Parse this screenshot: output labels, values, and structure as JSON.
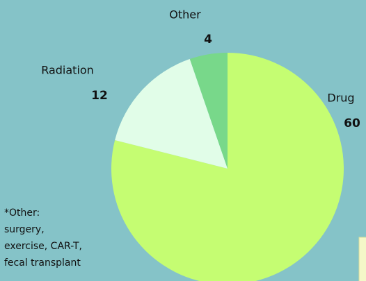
{
  "chart_data": {
    "type": "pie",
    "categories": [
      "Drug",
      "Radiation",
      "Other"
    ],
    "values": [
      60,
      12,
      4
    ],
    "colors": [
      "#c5fd72",
      "#e1fde8",
      "#78d88a"
    ],
    "note": [
      "*Other:",
      "surgery,",
      "exercise, CAR-T,",
      "fecal transplant"
    ]
  }
}
